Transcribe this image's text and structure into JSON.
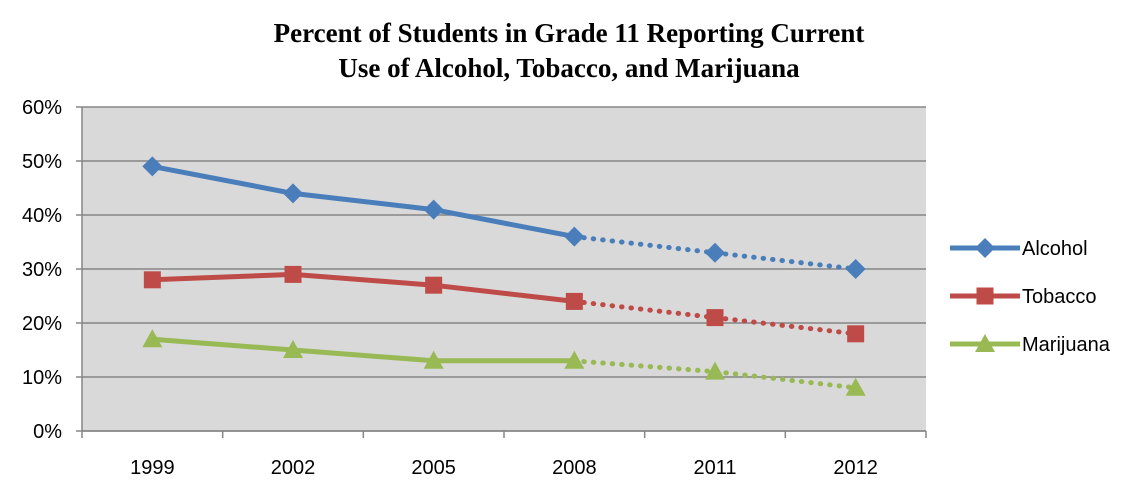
{
  "chart_data": {
    "type": "line",
    "title_lines": [
      "Percent of Students in Grade 11 Reporting Current",
      "Use of Alcohol, Tobacco, and Marijuana"
    ],
    "categories": [
      "1999",
      "2002",
      "2005",
      "2008",
      "2011",
      "2012"
    ],
    "y_ticks": [
      "0%",
      "10%",
      "20%",
      "30%",
      "40%",
      "50%",
      "60%"
    ],
    "ylim": [
      0,
      60
    ],
    "y_unit": "%",
    "grid": true,
    "legend_position": "right",
    "solid_until_index": 3,
    "dotted_from_index": 3,
    "series": [
      {
        "name": "Alcohol",
        "values": [
          49,
          44,
          41,
          36,
          33,
          30
        ],
        "color": "#4a7ebb",
        "marker": "diamond"
      },
      {
        "name": "Tobacco",
        "values": [
          28,
          29,
          27,
          24,
          21,
          18
        ],
        "color": "#be4b48",
        "marker": "square"
      },
      {
        "name": "Marijuana",
        "values": [
          17,
          15,
          13,
          13,
          11,
          8
        ],
        "color": "#98b954",
        "marker": "triangle"
      }
    ],
    "plot_background": "#d9d9d9",
    "grid_color": "#868686"
  }
}
